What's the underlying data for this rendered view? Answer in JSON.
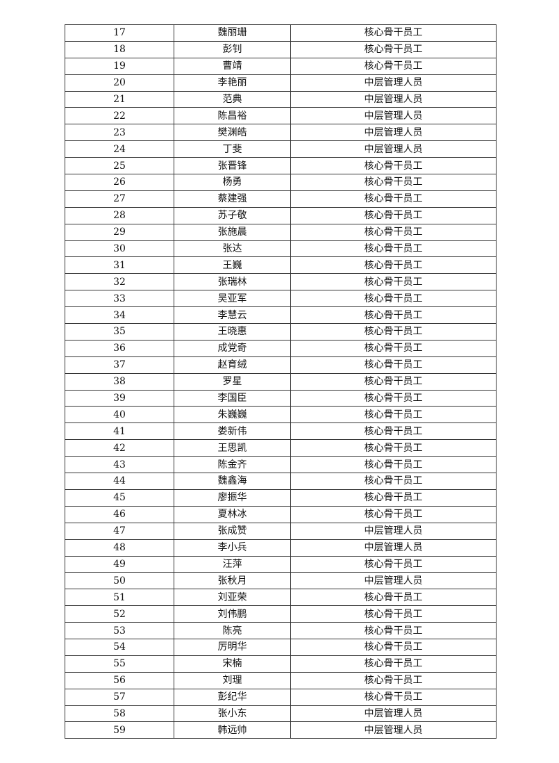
{
  "table": {
    "rows": [
      {
        "no": "17",
        "name": "魏丽珊",
        "category": "核心骨干员工"
      },
      {
        "no": "18",
        "name": "彭钊",
        "category": "核心骨干员工"
      },
      {
        "no": "19",
        "name": "曹靖",
        "category": "核心骨干员工"
      },
      {
        "no": "20",
        "name": "李艳丽",
        "category": "中层管理人员"
      },
      {
        "no": "21",
        "name": "范典",
        "category": "中层管理人员"
      },
      {
        "no": "22",
        "name": "陈昌裕",
        "category": "中层管理人员"
      },
      {
        "no": "23",
        "name": "樊渊皓",
        "category": "中层管理人员"
      },
      {
        "no": "24",
        "name": "丁斐",
        "category": "中层管理人员"
      },
      {
        "no": "25",
        "name": "张晋锋",
        "category": "核心骨干员工"
      },
      {
        "no": "26",
        "name": "杨勇",
        "category": "核心骨干员工"
      },
      {
        "no": "27",
        "name": "蔡建强",
        "category": "核心骨干员工"
      },
      {
        "no": "28",
        "name": "苏子敬",
        "category": "核心骨干员工"
      },
      {
        "no": "29",
        "name": "张施晨",
        "category": "核心骨干员工"
      },
      {
        "no": "30",
        "name": "张达",
        "category": "核心骨干员工"
      },
      {
        "no": "31",
        "name": "王巍",
        "category": "核心骨干员工"
      },
      {
        "no": "32",
        "name": "张瑞林",
        "category": "核心骨干员工"
      },
      {
        "no": "33",
        "name": "吴亚军",
        "category": "核心骨干员工"
      },
      {
        "no": "34",
        "name": "李慧云",
        "category": "核心骨干员工"
      },
      {
        "no": "35",
        "name": "王晓惠",
        "category": "核心骨干员工"
      },
      {
        "no": "36",
        "name": "成党奇",
        "category": "核心骨干员工"
      },
      {
        "no": "37",
        "name": "赵育绒",
        "category": "核心骨干员工"
      },
      {
        "no": "38",
        "name": "罗星",
        "category": "核心骨干员工"
      },
      {
        "no": "39",
        "name": "李国臣",
        "category": "核心骨干员工"
      },
      {
        "no": "40",
        "name": "朱巍巍",
        "category": "核心骨干员工"
      },
      {
        "no": "41",
        "name": "娄新伟",
        "category": "核心骨干员工"
      },
      {
        "no": "42",
        "name": "王思凯",
        "category": "核心骨干员工"
      },
      {
        "no": "43",
        "name": "陈金齐",
        "category": "核心骨干员工"
      },
      {
        "no": "44",
        "name": "魏鑫海",
        "category": "核心骨干员工"
      },
      {
        "no": "45",
        "name": "廖振华",
        "category": "核心骨干员工"
      },
      {
        "no": "46",
        "name": "夏林冰",
        "category": "核心骨干员工"
      },
      {
        "no": "47",
        "name": "张成赞",
        "category": "中层管理人员"
      },
      {
        "no": "48",
        "name": "李小兵",
        "category": "中层管理人员"
      },
      {
        "no": "49",
        "name": "汪萍",
        "category": "核心骨干员工"
      },
      {
        "no": "50",
        "name": "张秋月",
        "category": "中层管理人员"
      },
      {
        "no": "51",
        "name": "刘亚荣",
        "category": "核心骨干员工"
      },
      {
        "no": "52",
        "name": "刘伟鹏",
        "category": "核心骨干员工"
      },
      {
        "no": "53",
        "name": "陈亮",
        "category": "核心骨干员工"
      },
      {
        "no": "54",
        "name": "厉明华",
        "category": "核心骨干员工"
      },
      {
        "no": "55",
        "name": "宋楠",
        "category": "核心骨干员工"
      },
      {
        "no": "56",
        "name": "刘理",
        "category": "核心骨干员工"
      },
      {
        "no": "57",
        "name": "彭纪华",
        "category": "核心骨干员工"
      },
      {
        "no": "58",
        "name": "张小东",
        "category": "中层管理人员"
      },
      {
        "no": "59",
        "name": "韩远帅",
        "category": "中层管理人员"
      }
    ]
  }
}
